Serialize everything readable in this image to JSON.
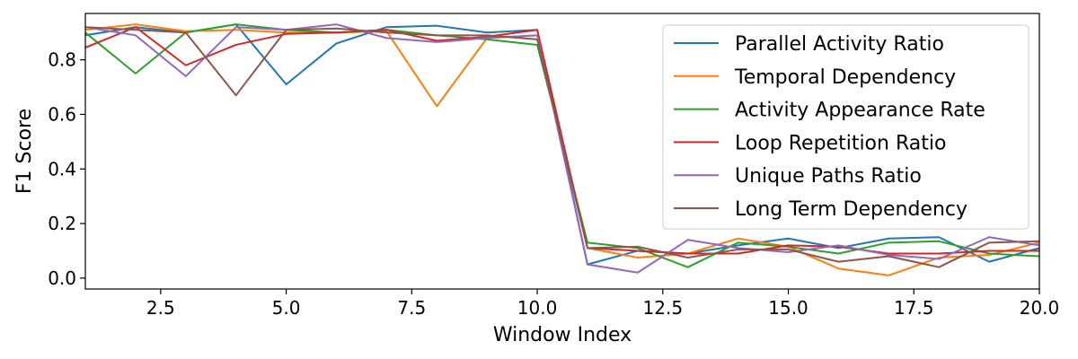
{
  "chart_data": {
    "type": "line",
    "title": "",
    "xlabel": "Window Index",
    "ylabel": "F1 Score",
    "xlim": [
      1,
      20
    ],
    "ylim": [
      -0.04,
      0.97
    ],
    "x_ticks": [
      2.5,
      5.0,
      7.5,
      10.0,
      12.5,
      15.0,
      17.5,
      20.0
    ],
    "x_tick_labels": [
      "2.5",
      "5.0",
      "7.5",
      "10.0",
      "12.5",
      "15.0",
      "17.5",
      "20.0"
    ],
    "y_ticks": [
      0.0,
      0.2,
      0.4,
      0.6,
      0.8
    ],
    "y_tick_labels": [
      "0.0",
      "0.2",
      "0.4",
      "0.6",
      "0.8"
    ],
    "grid": false,
    "legend_position": "upper-right",
    "x": [
      1,
      2,
      3,
      4,
      5,
      6,
      7,
      8,
      9,
      10,
      11,
      12,
      13,
      14,
      15,
      16,
      17,
      18,
      19,
      20
    ],
    "series": [
      {
        "name": "Parallel Activity Ratio",
        "color": "#1f77b4",
        "values": [
          0.89,
          0.92,
          0.9,
          0.93,
          0.71,
          0.86,
          0.92,
          0.925,
          0.9,
          0.91,
          0.05,
          0.1,
          0.09,
          0.12,
          0.145,
          0.11,
          0.145,
          0.15,
          0.06,
          0.11
        ]
      },
      {
        "name": "Temporal Dependency",
        "color": "#ff7f0e",
        "values": [
          0.91,
          0.93,
          0.905,
          0.91,
          0.9,
          0.9,
          0.905,
          0.63,
          0.88,
          0.89,
          0.11,
          0.075,
          0.09,
          0.145,
          0.115,
          0.035,
          0.01,
          0.075,
          0.085,
          0.13
        ]
      },
      {
        "name": "Activity Appearance Rate",
        "color": "#2ca02c",
        "values": [
          0.9,
          0.75,
          0.9,
          0.93,
          0.91,
          0.9,
          0.91,
          0.89,
          0.875,
          0.855,
          0.13,
          0.11,
          0.04,
          0.13,
          0.115,
          0.09,
          0.13,
          0.135,
          0.09,
          0.08
        ]
      },
      {
        "name": "Loop Repetition Ratio",
        "color": "#d62728",
        "values": [
          0.845,
          0.92,
          0.78,
          0.855,
          0.895,
          0.9,
          0.91,
          0.87,
          0.885,
          0.91,
          0.11,
          0.1,
          0.09,
          0.09,
          0.12,
          0.115,
          0.09,
          0.09,
          0.1,
          0.1
        ]
      },
      {
        "name": "Unique Paths Ratio",
        "color": "#9467bd",
        "values": [
          0.92,
          0.89,
          0.74,
          0.92,
          0.91,
          0.93,
          0.88,
          0.865,
          0.88,
          0.89,
          0.05,
          0.02,
          0.14,
          0.11,
          0.095,
          0.12,
          0.085,
          0.07,
          0.15,
          0.12
        ]
      },
      {
        "name": "Long Term Dependency",
        "color": "#8c564b",
        "values": [
          0.92,
          0.91,
          0.9,
          0.67,
          0.91,
          0.915,
          0.9,
          0.89,
          0.89,
          0.875,
          0.11,
          0.115,
          0.075,
          0.105,
          0.105,
          0.06,
          0.08,
          0.04,
          0.13,
          0.135
        ]
      }
    ]
  }
}
